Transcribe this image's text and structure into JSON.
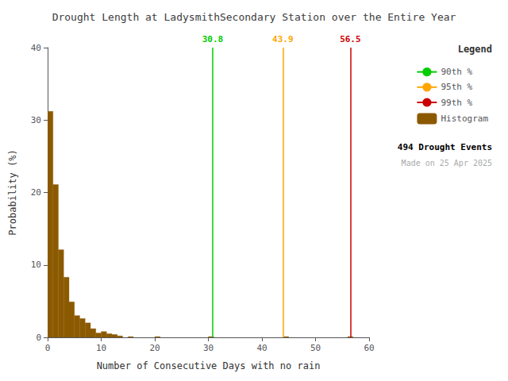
{
  "chart_data": {
    "type": "histogram",
    "title": "Drought Length at LadysmithSecondary Station over the Entire Year",
    "xlabel": "Number of Consecutive Days with no rain",
    "ylabel": "Probability (%)",
    "name": "Histogram",
    "color": "#8B5A00",
    "bins": [
      0,
      1,
      2,
      3,
      4,
      5,
      6,
      7,
      8,
      9,
      10,
      11,
      12,
      13,
      14,
      15,
      16,
      17,
      18,
      19,
      20,
      21,
      22,
      23,
      24,
      25,
      26,
      27,
      28,
      29,
      30,
      31,
      32,
      33,
      34,
      35,
      36,
      37,
      38,
      39,
      40,
      41,
      42,
      43,
      44,
      45,
      46,
      47,
      48,
      49,
      50,
      51,
      52,
      53,
      54,
      55,
      56,
      57,
      58,
      59,
      60
    ],
    "values": [
      31.2,
      21.1,
      12.1,
      8.3,
      4.9,
      3.0,
      2.6,
      2.0,
      1.2,
      0.6,
      0.8,
      0.5,
      0.4,
      0.2,
      0.0,
      0.1,
      0.0,
      0.0,
      0.0,
      0.0,
      0.1,
      0.0,
      0.0,
      0.0,
      0.0,
      0.0,
      0.0,
      0.0,
      0.0,
      0.0,
      0.1,
      0.0,
      0.0,
      0.0,
      0.0,
      0.0,
      0.0,
      0.0,
      0.0,
      0.0,
      0.0,
      0.0,
      0.0,
      0.0,
      0.1,
      0.0,
      0.0,
      0.0,
      0.0,
      0.0,
      0.0,
      0.0,
      0.0,
      0.0,
      0.0,
      0.0,
      0.1,
      0.0,
      0.0,
      0.0
    ],
    "xlim": [
      0,
      60
    ],
    "ylim": [
      0,
      40
    ],
    "xticks": [
      0,
      10,
      20,
      30,
      40,
      50,
      60
    ],
    "yticks": [
      0,
      10,
      20,
      30,
      40
    ],
    "grid": false,
    "legend": "upper right",
    "legend_title": "Legend",
    "percentile_lines": [
      {
        "name": "90th %",
        "x": 30.8,
        "color": "#00CC00"
      },
      {
        "name": "95th %",
        "x": 43.9,
        "color": "#FFA500"
      },
      {
        "name": "99th %",
        "x": 56.5,
        "color": "#CC0000"
      }
    ],
    "annotations": [
      "494 Drought Events",
      "Made on 25 Apr 2025"
    ]
  }
}
